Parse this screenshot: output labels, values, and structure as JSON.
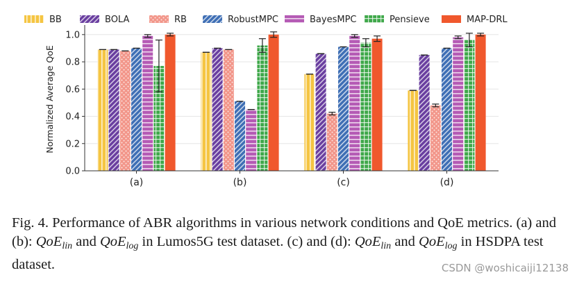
{
  "chart_data": {
    "type": "bar",
    "title": "",
    "xlabel": "",
    "ylabel": "Normalized Average QoE",
    "ylim": [
      0,
      1.05
    ],
    "yticks": [
      0.0,
      0.2,
      0.4,
      0.6,
      0.8,
      1.0
    ],
    "ytick_labels": [
      "0.0",
      "0.2",
      "0.4",
      "0.6",
      "0.8",
      "1.0"
    ],
    "legend_position": "top",
    "grid": true,
    "categories": [
      "(a)",
      "(b)",
      "(c)",
      "(d)"
    ],
    "series": [
      {
        "name": "BB",
        "color": "#f5c542",
        "pattern": "vlines",
        "values": [
          0.89,
          0.87,
          0.71,
          0.59
        ],
        "errors": [
          0.0,
          0.0,
          0.0,
          0.0
        ]
      },
      {
        "name": "BOLA",
        "color": "#6a3fa0",
        "pattern": "diag",
        "values": [
          0.89,
          0.9,
          0.86,
          0.85
        ],
        "errors": [
          0.0,
          0.0,
          0.0,
          0.0
        ]
      },
      {
        "name": "RB",
        "color": "#f2968a",
        "pattern": "dots",
        "values": [
          0.88,
          0.89,
          0.42,
          0.48
        ],
        "errors": [
          0.0,
          0.0,
          0.01,
          0.01
        ]
      },
      {
        "name": "RobustMPC",
        "color": "#3f6fb5",
        "pattern": "diag",
        "values": [
          0.9,
          0.51,
          0.91,
          0.9
        ],
        "errors": [
          0.0,
          0.0,
          0.0,
          0.0
        ]
      },
      {
        "name": "BayesMPC",
        "color": "#b55bb5",
        "pattern": "hlines",
        "values": [
          0.99,
          0.45,
          0.99,
          0.98
        ],
        "errors": [
          0.01,
          0.0,
          0.01,
          0.01
        ]
      },
      {
        "name": "Pensieve",
        "color": "#3fa84a",
        "pattern": "grid",
        "values": [
          0.77,
          0.92,
          0.94,
          0.96
        ],
        "errors": [
          0.19,
          0.05,
          0.03,
          0.05
        ]
      },
      {
        "name": "MAP-DRL",
        "color": "#f0582d",
        "pattern": "none",
        "values": [
          1.0,
          1.0,
          0.97,
          1.0
        ],
        "errors": [
          0.01,
          0.02,
          0.02,
          0.01
        ]
      }
    ]
  },
  "caption": {
    "fig_label": "Fig. 4.",
    "main_text": "Performance of ABR algorithms in various network conditions and QoE metrics. (a) and (b):",
    "math1_base": "QoE",
    "math1_sub": "lin",
    "and1": "and",
    "math2_base": "QoE",
    "math2_sub": "log",
    "text2": "in Lumos5G test dataset. (c) and (d):",
    "math3_base": "QoE",
    "math3_sub": "lin",
    "and2": "and",
    "math4_base": "QoE",
    "math4_sub": "log",
    "text3": "in HSDPA test dataset."
  },
  "watermark": "CSDN @woshicaiji12138"
}
